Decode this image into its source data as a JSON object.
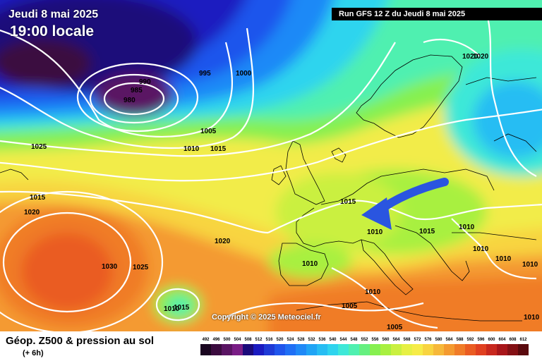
{
  "header": {
    "date": "Jeudi 8 mai 2025",
    "time": "19:00 locale",
    "run": "Run GFS 12 Z du Jeudi 8 mai 2025"
  },
  "footer": {
    "title": "Géop. Z500 & pression au sol",
    "subtitle": "(+ 6h)",
    "copyright": "Copyright © 2025 Meteociel.fr"
  },
  "legend_levels": [
    492,
    496,
    500,
    504,
    508,
    512,
    516,
    520,
    524,
    528,
    532,
    536,
    540,
    544,
    548,
    552,
    556,
    560,
    564,
    568,
    572,
    576,
    580,
    584,
    588,
    592,
    596,
    600,
    604,
    608,
    612
  ],
  "legend_colors": [
    "#1a0620",
    "#3b0b3f",
    "#5a1463",
    "#7a1d86",
    "#1b0a7a",
    "#1a1ac0",
    "#1e3ad6",
    "#1f55ec",
    "#1f6ff5",
    "#1f89f7",
    "#20a4f5",
    "#27bdf3",
    "#2fd4ee",
    "#3ee8d8",
    "#4ff0b0",
    "#66f080",
    "#86f050",
    "#a8f040",
    "#caf040",
    "#e6f044",
    "#f6ec48",
    "#f8d440",
    "#f6b83a",
    "#f49a30",
    "#f07c28",
    "#ea5c22",
    "#e04020",
    "#c8281e",
    "#a8161a",
    "#841014",
    "#5a0a0e"
  ],
  "isobar_labels": [
    {
      "text": "990"
    },
    {
      "text": "985"
    },
    {
      "text": "980"
    },
    {
      "text": "995"
    },
    {
      "text": "1000"
    },
    {
      "text": "1005"
    },
    {
      "text": "1010"
    },
    {
      "text": "1015"
    },
    {
      "text": "1025"
    },
    {
      "text": "1015"
    },
    {
      "text": "1020"
    },
    {
      "text": "1015"
    },
    {
      "text": "1020"
    },
    {
      "text": "1010"
    },
    {
      "text": "1015"
    },
    {
      "text": "1010"
    },
    {
      "text": "1010"
    },
    {
      "text": "1010"
    },
    {
      "text": "1010"
    },
    {
      "text": "1030"
    },
    {
      "text": "1025"
    },
    {
      "text": "1015"
    },
    {
      "text": "1010"
    },
    {
      "text": "1005"
    },
    {
      "text": "1005"
    },
    {
      "text": "1010"
    },
    {
      "text": "1010"
    },
    {
      "text": "1020"
    },
    {
      "text": "1020"
    },
    {
      "text": "1010"
    }
  ],
  "colors": {
    "arrow": "#2a55e0",
    "isobar": "#ffffff",
    "coast": "#000000"
  },
  "icons": [
    "wind-arrow-icon"
  ]
}
